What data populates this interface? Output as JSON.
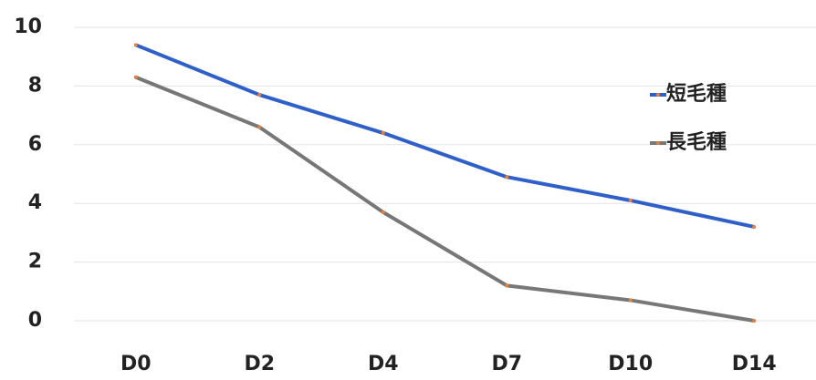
{
  "chart_data": {
    "type": "line",
    "categories": [
      "D0",
      "D2",
      "D4",
      "D7",
      "D10",
      "D14"
    ],
    "series": [
      {
        "name": "短毛種",
        "color": "#2f5fc8",
        "values": [
          9.4,
          7.7,
          6.4,
          4.9,
          4.1,
          3.2
        ]
      },
      {
        "name": "長毛種",
        "color": "#777777",
        "values": [
          8.3,
          6.6,
          3.7,
          1.2,
          0.7,
          0
        ]
      }
    ],
    "marker_color": "#e8803a",
    "ylim": [
      0,
      10
    ],
    "yticks": [
      0,
      2,
      4,
      6,
      8,
      10
    ],
    "grid": true,
    "legend": "right"
  }
}
